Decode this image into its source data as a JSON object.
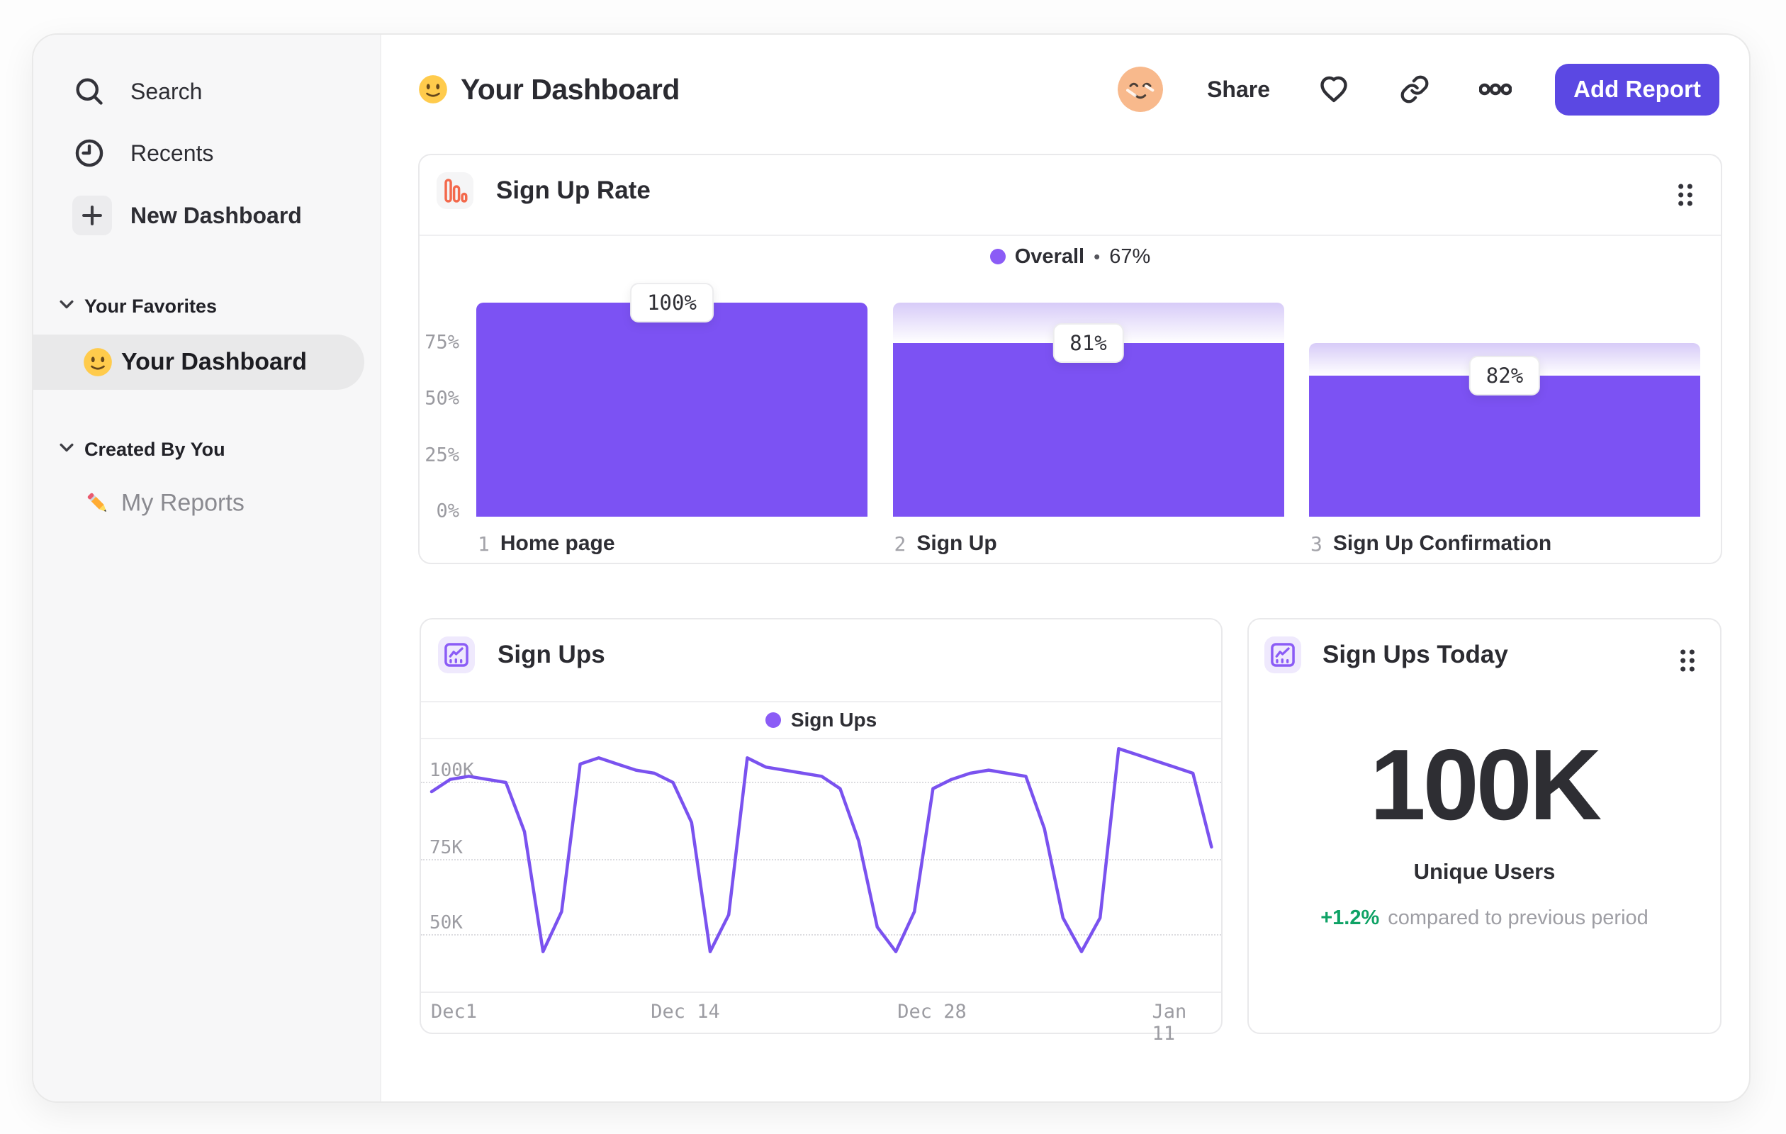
{
  "sidebar": {
    "nav": [
      {
        "label": "Search",
        "icon": "search-icon"
      },
      {
        "label": "Recents",
        "icon": "clock-icon"
      },
      {
        "label": "New Dashboard",
        "icon": "plus-icon"
      }
    ],
    "sections": [
      {
        "title": "Your Favorites",
        "items": [
          {
            "label": "Your Dashboard",
            "emoji": "slightly-smiling-face",
            "selected": true
          }
        ]
      },
      {
        "title": "Created By You",
        "items": [
          {
            "label": "My Reports",
            "emoji": "pencil",
            "selected": false
          }
        ]
      }
    ]
  },
  "header": {
    "title": "Your Dashboard",
    "title_emoji": "slightly-smiling-face",
    "share": "Share",
    "add_report": "Add Report"
  },
  "funnel_card": {
    "title": "Sign Up Rate",
    "legend_series": "Overall",
    "legend_sep": "•",
    "legend_value": "67%"
  },
  "line_card": {
    "title": "Sign Ups",
    "legend": "Sign Ups"
  },
  "kpi_card": {
    "title": "Sign Ups Today",
    "value": "100K",
    "label": "Unique Users",
    "delta": "+1.2%",
    "note": "compared to previous period"
  },
  "colors": {
    "bar_purple": "#7c52f3",
    "line_purple": "#7a52ef",
    "legend_dot_purple": "#8b5cf6",
    "button_purple": "#5b48e3",
    "funnel_icon_orange": "#f3694c",
    "delta_green": "#0ea265",
    "sidebar_bg": "#f7f7f8",
    "selected_pill": "#e9e9ea"
  },
  "chart_data": [
    {
      "type": "bar",
      "subtype": "funnel",
      "title": "Sign Up Rate",
      "legend": {
        "name": "Overall",
        "overall_conversion_pct": 67
      },
      "y_ticks": [
        "0%",
        "25%",
        "50%",
        "75%"
      ],
      "ylim": [
        0,
        100
      ],
      "steps": [
        {
          "num": "1",
          "name": "Home page",
          "badge": "100%",
          "step_conversion_pct": 100,
          "overall_height_pct": 100,
          "ghost_from_pct": 100
        },
        {
          "num": "2",
          "name": "Sign Up",
          "badge": "81%",
          "step_conversion_pct": 81,
          "overall_height_pct": 81,
          "ghost_from_pct": 100
        },
        {
          "num": "3",
          "name": "Sign Up Confirmation",
          "badge": "82%",
          "step_conversion_pct": 82,
          "overall_height_pct": 66,
          "ghost_from_pct": 81
        }
      ]
    },
    {
      "type": "line",
      "title": "Sign Ups",
      "x_ticks": [
        "Dec1",
        "Dec 14",
        "Dec 28",
        "Jan 11"
      ],
      "y_ticks": [
        "50K",
        "75K",
        "100K"
      ],
      "ylim_k": [
        30,
        115
      ],
      "grid": "dotted-horizontal",
      "legend_position": "top-center",
      "series": [
        {
          "name": "Sign Ups",
          "values_k": [
            97,
            101,
            102,
            101,
            100,
            84,
            45,
            58,
            106,
            108,
            106,
            104,
            103,
            100,
            87,
            45,
            57,
            108,
            105,
            104,
            103,
            102,
            98,
            81,
            53,
            45,
            58,
            98,
            101,
            103,
            104,
            103,
            102,
            85,
            56,
            45,
            56,
            111,
            109,
            107,
            105,
            103,
            79
          ]
        }
      ]
    },
    {
      "type": "kpi",
      "title": "Sign Ups Today",
      "value": "100K",
      "value_numeric": 100000,
      "label": "Unique Users",
      "delta_pct": 1.2,
      "note": "compared to previous period"
    }
  ]
}
